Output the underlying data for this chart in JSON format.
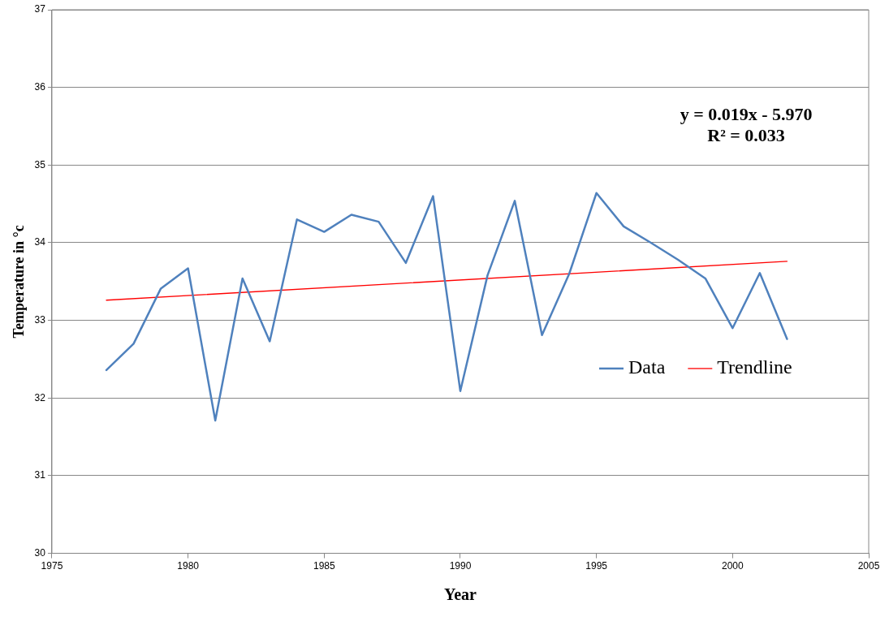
{
  "chart_data": {
    "type": "line",
    "xlabel": "Year",
    "ylabel": "Temperature in °c",
    "x": [
      1977,
      1978,
      1979,
      1980,
      1981,
      1982,
      1983,
      1984,
      1985,
      1986,
      1987,
      1988,
      1989,
      1990,
      1991,
      1992,
      1993,
      1994,
      1995,
      1996,
      1997,
      1998,
      1999,
      2000,
      2001,
      2002
    ],
    "series": [
      {
        "name": "Data",
        "color": "#4f81bd",
        "values": [
          32.36,
          32.7,
          33.41,
          33.67,
          31.71,
          33.54,
          32.73,
          34.3,
          34.14,
          34.36,
          34.27,
          33.74,
          34.6,
          32.09,
          33.58,
          34.54,
          32.81,
          33.6,
          34.64,
          34.21,
          34.0,
          33.78,
          33.54,
          32.9,
          33.61,
          32.76
        ]
      },
      {
        "name": "Trendline",
        "type": "line",
        "color": "#ff0000",
        "x": [
          1977,
          2002
        ],
        "values": [
          33.26,
          33.76
        ]
      }
    ],
    "xlim": [
      1975,
      2005
    ],
    "xticks": [
      1975,
      1980,
      1985,
      1990,
      1995,
      2000,
      2005
    ],
    "ylim": [
      30,
      37
    ],
    "yticks": [
      30,
      31,
      32,
      33,
      34,
      35,
      36,
      37
    ],
    "annotations": [
      "y = 0.019x - 5.970\nR² = 0.033"
    ],
    "grid": "y",
    "legend": "right",
    "marker": "none",
    "line_style": "solid"
  }
}
